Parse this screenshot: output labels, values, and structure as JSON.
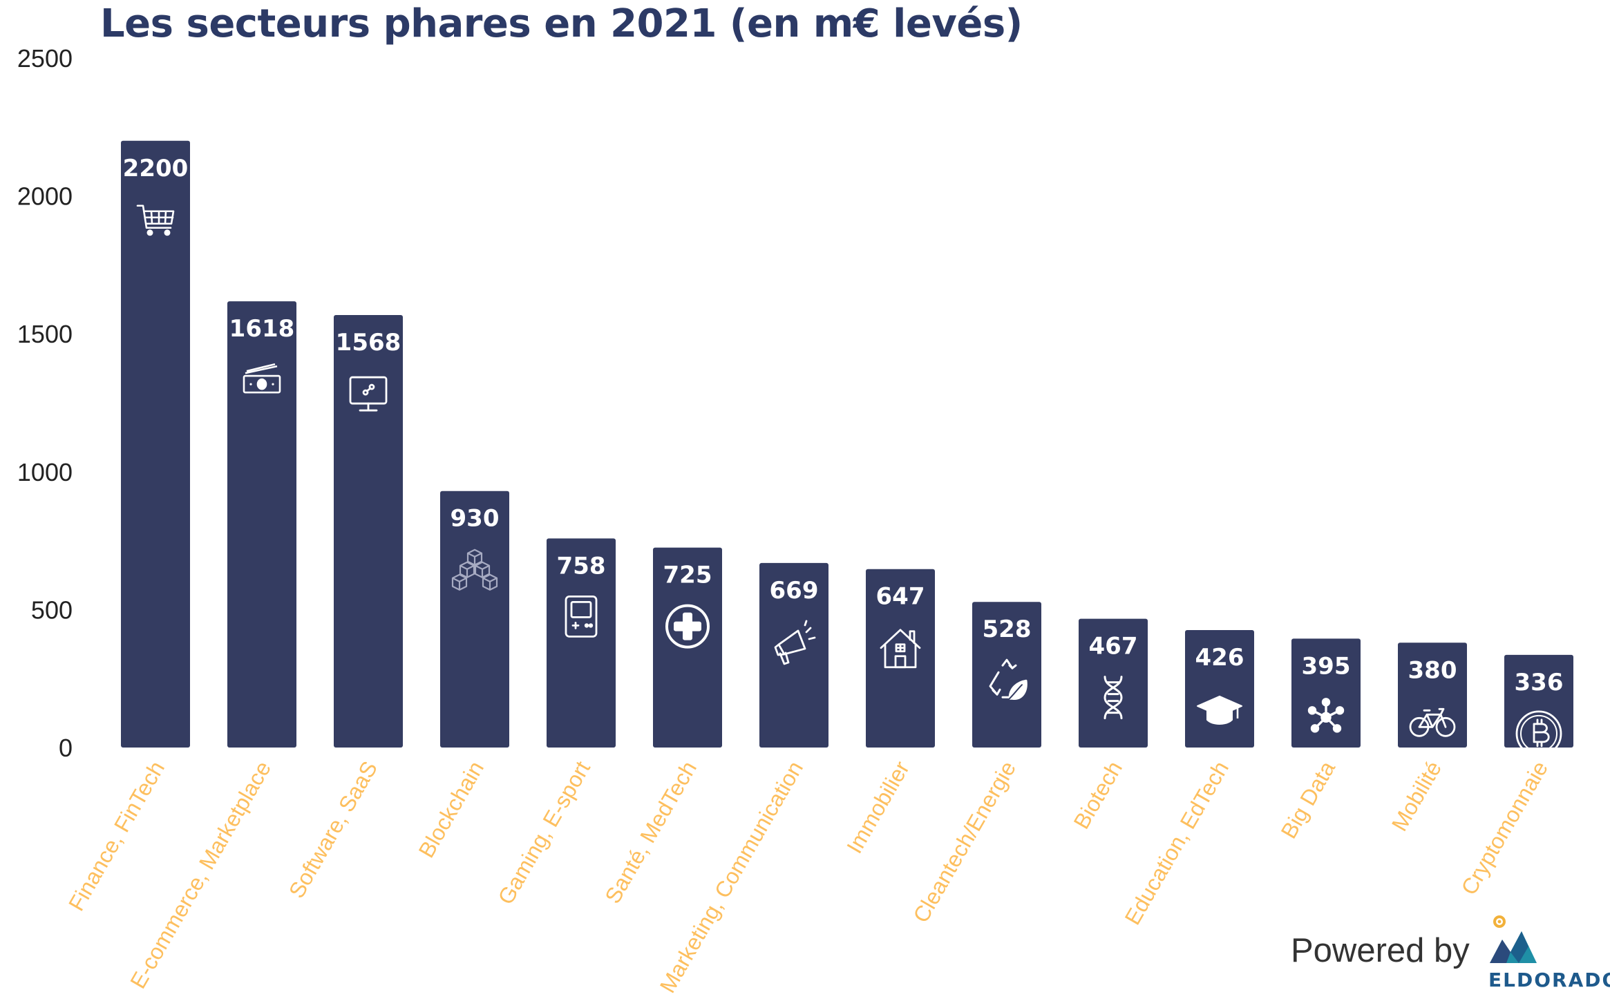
{
  "chart_data": {
    "type": "bar",
    "title": "Les secteurs phares en 2021 (en m€ levés)",
    "categories": [
      "Finance, FinTech",
      "E-commerce, Marketplace",
      "Software, SaaS",
      "Blockchain",
      "Gaming, E-sport",
      "Santé, MedTech",
      "Marketing, Communication",
      "Immobilier",
      "Cleantech/Energie",
      "Biotech",
      "Education, EdTech",
      "Big Data",
      "Mobilité",
      "Cryptomonnaie"
    ],
    "values": [
      2200,
      1618,
      1568,
      930,
      758,
      725,
      669,
      647,
      528,
      467,
      426,
      395,
      380,
      336
    ],
    "data_labels": [
      "2200",
      "1618",
      "1568",
      "930",
      "758",
      "725",
      "669",
      "647",
      "528",
      "467",
      "426",
      "395",
      "380",
      "336"
    ],
    "icons": [
      "shopping-cart-icon",
      "banknotes-icon",
      "monitor-link-icon",
      "blocks-icon",
      "game-console-icon",
      "medical-cross-icon",
      "megaphone-icon",
      "house-icon",
      "recycle-leaf-icon",
      "dna-icon",
      "graduation-cap-icon",
      "network-icon",
      "bicycle-icon",
      "bitcoin-icon"
    ],
    "y_ticks": [
      "0",
      "500",
      "1000",
      "1500",
      "2000",
      "2500"
    ],
    "ylim": [
      0,
      2500
    ],
    "xlabel": "",
    "ylabel": "",
    "grid": false,
    "legend": "none",
    "colors": {
      "bar": "#343c61",
      "title": "#2c3a66",
      "category_label": "#fdbf5e",
      "value_label": "#ffffff",
      "tick_label": "#222222"
    }
  },
  "footer": {
    "powered_by": "Powered by",
    "logo_text": "ELDORADO"
  }
}
